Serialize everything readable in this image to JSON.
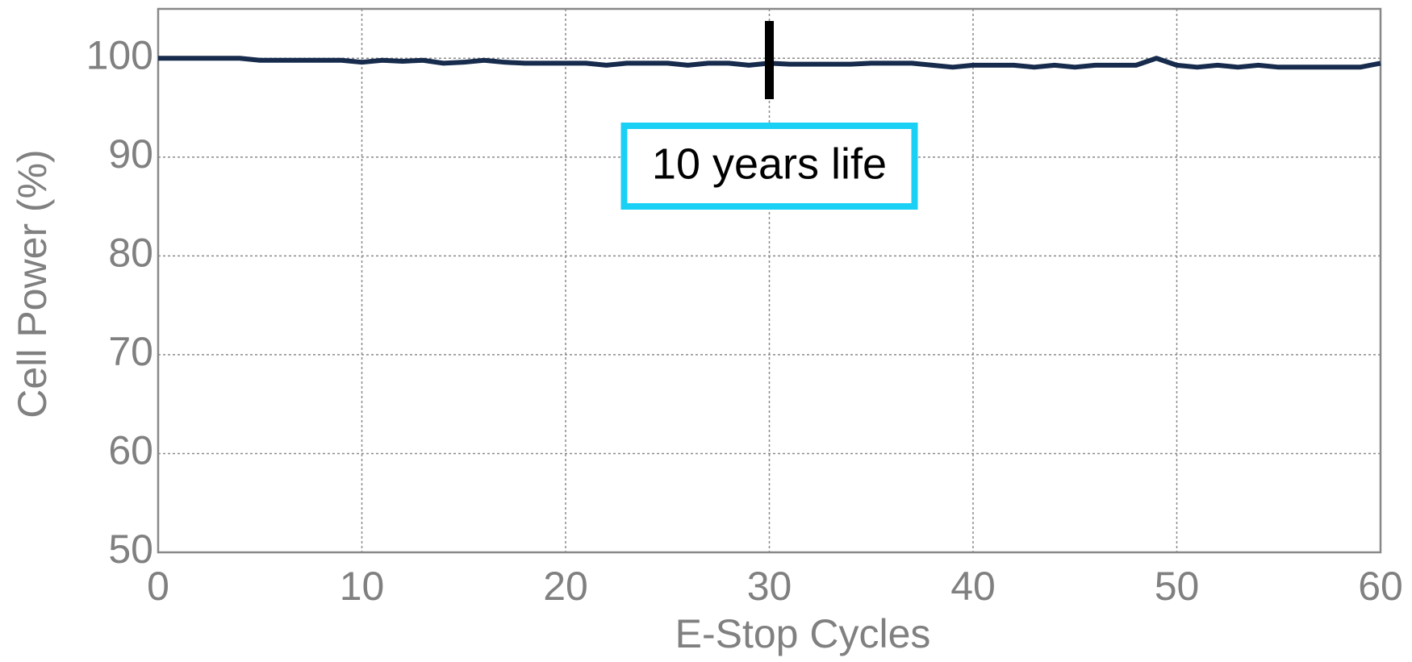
{
  "chart_data": {
    "type": "line",
    "xlabel": "E-Stop Cycles",
    "ylabel": "Cell Power (%)",
    "x": [
      0,
      1,
      2,
      3,
      4,
      5,
      6,
      7,
      8,
      9,
      10,
      11,
      12,
      13,
      14,
      15,
      16,
      17,
      18,
      19,
      20,
      21,
      22,
      23,
      24,
      25,
      26,
      27,
      28,
      29,
      30,
      31,
      32,
      33,
      34,
      35,
      36,
      37,
      38,
      39,
      40,
      41,
      42,
      43,
      44,
      45,
      46,
      47,
      48,
      49,
      50,
      51,
      52,
      53,
      54,
      55,
      56,
      57,
      58,
      59,
      60
    ],
    "series": [
      {
        "name": "Cell Power",
        "color": "#172b4d",
        "values": [
          100,
          100,
          100,
          100,
          100,
          99.8,
          99.8,
          99.8,
          99.8,
          99.8,
          99.6,
          99.8,
          99.7,
          99.8,
          99.5,
          99.6,
          99.8,
          99.6,
          99.5,
          99.5,
          99.5,
          99.5,
          99.3,
          99.5,
          99.5,
          99.5,
          99.3,
          99.5,
          99.5,
          99.3,
          99.5,
          99.4,
          99.4,
          99.4,
          99.4,
          99.5,
          99.5,
          99.5,
          99.3,
          99.1,
          99.3,
          99.3,
          99.3,
          99.1,
          99.3,
          99.1,
          99.3,
          99.3,
          99.3,
          100,
          99.3,
          99.1,
          99.3,
          99.1,
          99.3,
          99.1,
          99.1,
          99.1,
          99.1,
          99.1,
          99.5
        ]
      }
    ],
    "xlim": [
      0,
      60
    ],
    "xticks": [
      0,
      10,
      20,
      30,
      40,
      50,
      60
    ],
    "ylim": [
      50,
      105
    ],
    "yticks": [
      50,
      60,
      70,
      80,
      90,
      100
    ],
    "grid": true,
    "annotations": [
      {
        "text": "10 years life",
        "x": 30
      }
    ]
  }
}
